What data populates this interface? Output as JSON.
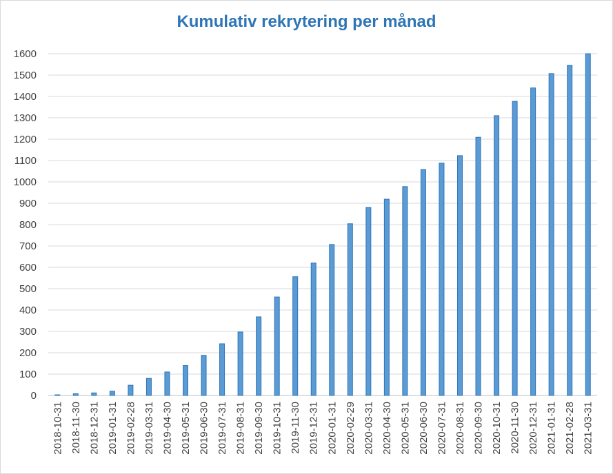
{
  "chart_data": {
    "type": "bar",
    "title": "Kumulativ rekrytering per månad",
    "xlabel": "",
    "ylabel": "",
    "ylim": [
      0,
      1600
    ],
    "yticks": [
      0,
      100,
      200,
      300,
      400,
      500,
      600,
      700,
      800,
      900,
      1000,
      1100,
      1200,
      1300,
      1400,
      1500,
      1600
    ],
    "grid": true,
    "legend": "none",
    "bar_color": "#5b9bd5",
    "bar_edge_color": "#2e75b6",
    "categories": [
      "2018-10-31",
      "2018-11-30",
      "2018-12-31",
      "2019-01-31",
      "2019-02-28",
      "2019-03-31",
      "2019-04-30",
      "2019-05-31",
      "2019-06-30",
      "2019-07-31",
      "2019-08-31",
      "2019-09-30",
      "2019-10-31",
      "2019-11-30",
      "2019-12-31",
      "2020-01-31",
      "2020-02-29",
      "2020-03-31",
      "2020-04-30",
      "2020-05-31",
      "2020-06-30",
      "2020-07-31",
      "2020-08-31",
      "2020-09-30",
      "2020-10-31",
      "2020-11-30",
      "2020-12-31",
      "2021-01-31",
      "2021-02-28",
      "2021-03-31"
    ],
    "values": [
      3,
      8,
      12,
      20,
      48,
      80,
      110,
      140,
      188,
      242,
      297,
      368,
      461,
      556,
      620,
      707,
      804,
      880,
      919,
      978,
      1058,
      1088,
      1123,
      1209,
      1310,
      1377,
      1440,
      1507,
      1546,
      1600
    ]
  }
}
